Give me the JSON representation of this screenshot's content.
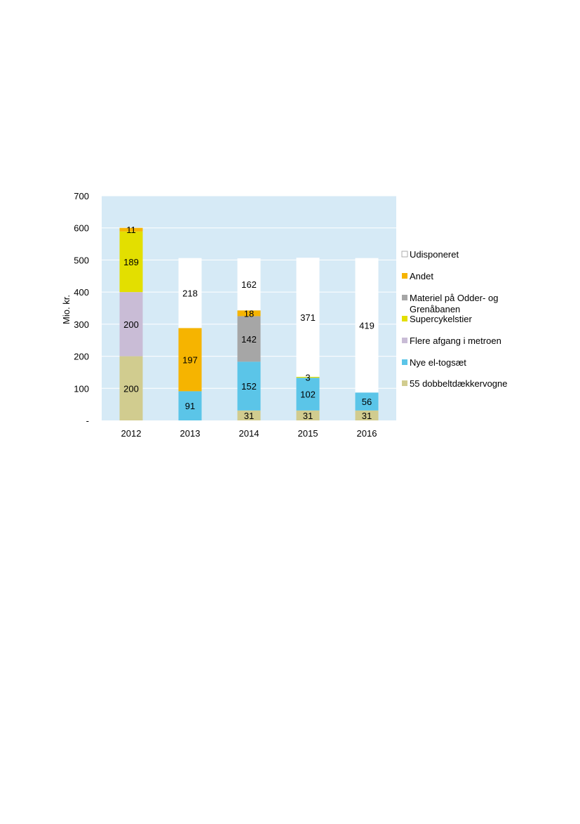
{
  "chart_data": {
    "type": "bar",
    "stacked": true,
    "categories": [
      "2012",
      "2013",
      "2014",
      "2015",
      "2016"
    ],
    "ylabel": "Mio. kr.",
    "xlabel": "",
    "ylim": [
      0,
      700
    ],
    "yticks": [
      0,
      100,
      200,
      300,
      400,
      500,
      600,
      700
    ],
    "ytick_labels": [
      "-",
      "100",
      "200",
      "300",
      "400",
      "500",
      "600",
      "700"
    ],
    "grid": true,
    "legend_position": "right",
    "plot_background": "#d6eaf6",
    "series": [
      {
        "name": "55 dobbeltdækkervogne",
        "color": "#d1cc8f",
        "values": [
          200,
          0,
          31,
          31,
          31
        ],
        "labels": [
          "200",
          "",
          "31",
          "31",
          "31"
        ]
      },
      {
        "name": "Nye el-togsæt",
        "color": "#5bc5e8",
        "values": [
          0,
          91,
          152,
          102,
          56
        ],
        "labels": [
          "",
          "91",
          "152",
          "102",
          "56"
        ]
      },
      {
        "name": "Flere afgang i metroen",
        "color": "#c9bcd6",
        "values": [
          200,
          0,
          0,
          0,
          0
        ],
        "labels": [
          "200",
          "",
          "",
          "",
          ""
        ]
      },
      {
        "name": "Supercykelstier",
        "color": "#e3df00",
        "values": [
          189,
          0,
          0,
          3,
          0
        ],
        "labels": [
          "189",
          "",
          "",
          "3",
          ""
        ]
      },
      {
        "name": "Materiel på Odder- og Grenåbanen",
        "color": "#a6a6a6",
        "values": [
          0,
          0,
          142,
          0,
          0
        ],
        "labels": [
          "",
          "",
          "142",
          "",
          ""
        ]
      },
      {
        "name": "Andet",
        "color": "#f6b400",
        "values": [
          11,
          197,
          18,
          0,
          0
        ],
        "labels": [
          "11",
          "197",
          "18",
          "",
          ""
        ]
      },
      {
        "name": "Udisponeret",
        "color": "#ffffff",
        "values": [
          0,
          218,
          162,
          371,
          419
        ],
        "labels": [
          "",
          "218",
          "162",
          "371",
          "419"
        ]
      }
    ],
    "legend_order": [
      "Udisponeret",
      "Andet",
      "Materiel på Odder- og Grenåbanen",
      "Supercykelstier",
      "Flere afgang i metroen",
      "Nye el-togsæt",
      "55 dobbeltdækkervogne"
    ]
  }
}
